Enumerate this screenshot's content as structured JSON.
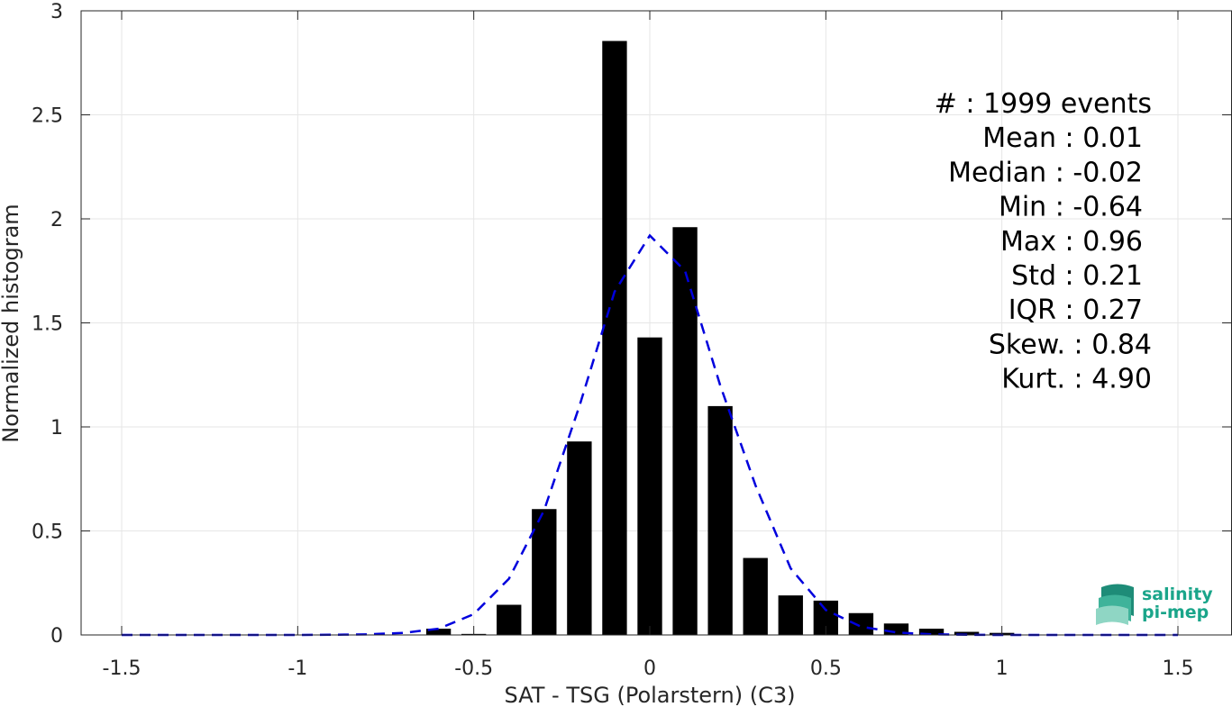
{
  "chart_data": {
    "type": "bar",
    "xlabel": "SAT - TSG (Polarstern) (C3)",
    "ylabel": "Normalized histogram",
    "xlim": [
      -1.5,
      1.5
    ],
    "ylim": [
      0,
      3
    ],
    "xticks": [
      -1.5,
      -1,
      -0.5,
      0,
      0.5,
      1,
      1.5
    ],
    "xtick_labels": [
      "-1.5",
      "-1",
      "-0.5",
      "0",
      "0.5",
      "1",
      "1.5"
    ],
    "yticks": [
      0,
      0.5,
      1,
      1.5,
      2,
      2.5,
      3
    ],
    "ytick_labels": [
      "0",
      "0.5",
      "1",
      "1.5",
      "2",
      "2.5",
      "3"
    ],
    "grid": true,
    "bar_width": 0.07,
    "bars": {
      "x": [
        -0.6,
        -0.5,
        -0.4,
        -0.3,
        -0.2,
        -0.1,
        0.0,
        0.1,
        0.2,
        0.3,
        0.4,
        0.5,
        0.6,
        0.7,
        0.8,
        0.9,
        1.0
      ],
      "values": [
        0.03,
        0.005,
        0.145,
        0.605,
        0.93,
        2.855,
        1.43,
        1.96,
        1.1,
        0.37,
        0.19,
        0.165,
        0.105,
        0.055,
        0.03,
        0.015,
        0.01
      ],
      "color": "#000000"
    },
    "fit_curve": {
      "style": "dashed",
      "color": "#0000dd",
      "x": [
        -1.5,
        -1.4,
        -1.3,
        -1.2,
        -1.1,
        -1.0,
        -0.9,
        -0.8,
        -0.7,
        -0.6,
        -0.5,
        -0.4,
        -0.3,
        -0.2,
        -0.1,
        0.0,
        0.1,
        0.2,
        0.3,
        0.4,
        0.5,
        0.6,
        0.7,
        0.8,
        0.9,
        1.0,
        1.1,
        1.2,
        1.3,
        1.4,
        1.5
      ],
      "y": [
        0,
        0,
        0,
        0,
        0,
        0,
        0.001,
        0.003,
        0.01,
        0.03,
        0.1,
        0.27,
        0.6,
        1.1,
        1.65,
        1.92,
        1.75,
        1.2,
        0.72,
        0.32,
        0.12,
        0.04,
        0.012,
        0.003,
        0.001,
        0,
        0,
        0,
        0,
        0,
        0
      ]
    },
    "stats_lines": [
      "#  : 1999 events",
      "Mean : 0.01",
      "Median : -0.02",
      "Min : -0.64",
      "Max : 0.96",
      "Std : 0.21",
      "IQR : 0.27",
      "Skew. : 0.84",
      "Kurt. : 4.90"
    ]
  },
  "logo": {
    "line1": "salinity",
    "line2": "pi-mep",
    "color": "#1aa58a"
  }
}
